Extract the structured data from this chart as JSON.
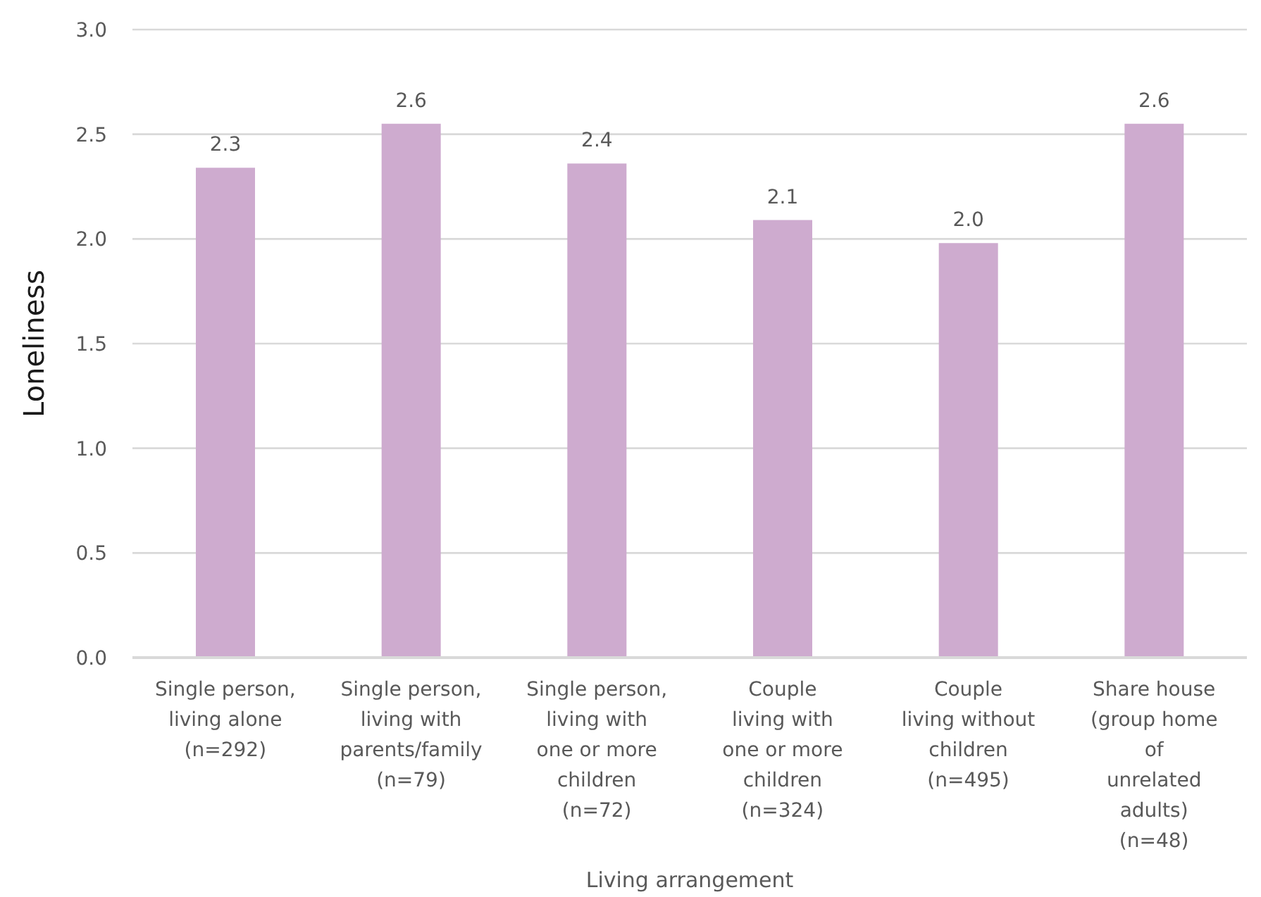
{
  "chart_data": {
    "type": "bar",
    "xlabel": "Living arrangement",
    "ylabel": "Loneliness",
    "categories": [
      "Single person,\nliving alone\n(n=292)",
      "Single person,\nliving with\nparents/family\n(n=79)",
      "Single person,\nliving with\none or more\nchildren\n(n=72)",
      "Couple\nliving with\none or more\nchildren\n(n=324)",
      "Couple\nliving without\nchildren\n(n=495)",
      "Share house\n(group home\nof\nunrelated\nadults)\n(n=48)"
    ],
    "values": [
      2.34,
      2.55,
      2.36,
      2.09,
      1.98,
      2.55
    ],
    "value_labels": [
      "2.3",
      "2.6",
      "2.4",
      "2.1",
      "2.0",
      "2.6"
    ],
    "color": "#ceabcf",
    "ylim": [
      0,
      3
    ],
    "yticks": [
      {
        "value": 0,
        "label": "0.0"
      },
      {
        "value": 0.5,
        "label": "0.5"
      },
      {
        "value": 1,
        "label": "1.0"
      },
      {
        "value": 1.5,
        "label": "1.5"
      },
      {
        "value": 2,
        "label": "2.0"
      },
      {
        "value": 2.5,
        "label": "2.5"
      },
      {
        "value": 3,
        "label": "3.0"
      }
    ],
    "grid": "y"
  }
}
